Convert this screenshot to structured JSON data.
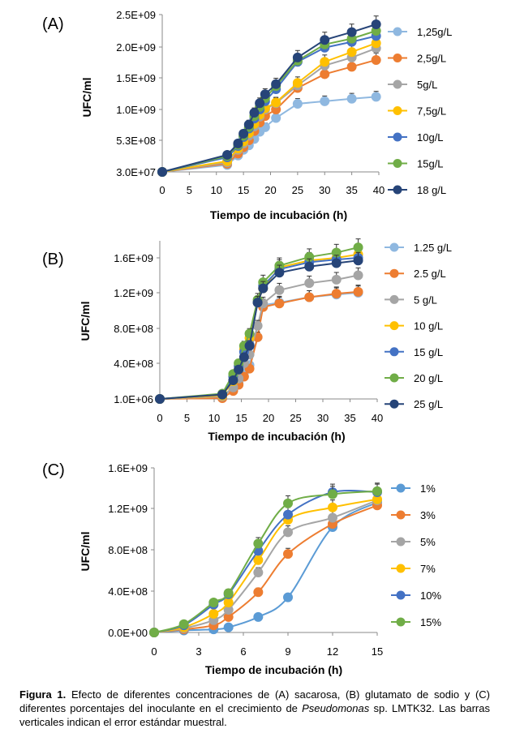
{
  "chart_data": [
    {
      "type": "line",
      "panel_label": "(A)",
      "xlabel": "Tiempo de incubación (h)",
      "ylabel": "UFC/ml",
      "xticks": [
        "0",
        "5",
        "10",
        "15",
        "20",
        "25",
        "30",
        "35",
        "40"
      ],
      "yticks": [
        "3.0E+07",
        "5.3E+08",
        "1.0E+09",
        "1.5E+09",
        "2.0E+09",
        "2.5E+09"
      ],
      "xlim": [
        0,
        40
      ],
      "ylim": [
        30000000,
        2500000000
      ],
      "x": [
        0,
        12,
        14,
        15,
        16,
        17,
        18,
        19,
        21,
        25,
        30,
        35,
        39.5
      ],
      "series": [
        {
          "name": "1,25g/L",
          "color": "#8fb8e0",
          "values": [
            30000000,
            140000000,
            290000000,
            380000000,
            450000000,
            550000000,
            660000000,
            730000000,
            870000000,
            1090000000,
            1130000000,
            1170000000,
            1200000000
          ]
        },
        {
          "name": "2,5g/L",
          "color": "#ed7d31",
          "values": [
            30000000,
            160000000,
            320000000,
            420000000,
            530000000,
            670000000,
            800000000,
            900000000,
            1000000000,
            1340000000,
            1560000000,
            1680000000,
            1790000000
          ]
        },
        {
          "name": "5g/L",
          "color": "#a5a5a5",
          "values": [
            30000000,
            180000000,
            380000000,
            480000000,
            600000000,
            740000000,
            890000000,
            1000000000,
            1100000000,
            1380000000,
            1700000000,
            1830000000,
            1980000000
          ]
        },
        {
          "name": "7,5g/L",
          "color": "#ffc000",
          "values": [
            30000000,
            200000000,
            400000000,
            510000000,
            640000000,
            780000000,
            920000000,
            1020000000,
            1110000000,
            1420000000,
            1760000000,
            1920000000,
            2060000000
          ]
        },
        {
          "name": "10g/L",
          "color": "#4472c4",
          "values": [
            30000000,
            260000000,
            440000000,
            580000000,
            710000000,
            860000000,
            1000000000,
            1130000000,
            1320000000,
            1760000000,
            1990000000,
            2080000000,
            2170000000
          ]
        },
        {
          "name": "15g/L",
          "color": "#70ad47",
          "values": [
            30000000,
            280000000,
            460000000,
            600000000,
            730000000,
            900000000,
            1040000000,
            1180000000,
            1370000000,
            1780000000,
            2040000000,
            2130000000,
            2250000000
          ]
        },
        {
          "name": "18 g/L",
          "color": "#264478",
          "values": [
            30000000,
            300000000,
            480000000,
            630000000,
            770000000,
            950000000,
            1100000000,
            1240000000,
            1400000000,
            1830000000,
            2110000000,
            2230000000,
            2350000000
          ]
        }
      ],
      "error_bars": true
    },
    {
      "type": "line",
      "panel_label": "(B)",
      "xlabel": "Tiempo de incubación (h)",
      "ylabel": "UFC/ml",
      "xticks": [
        "0",
        "5",
        "10",
        "15",
        "20",
        "25",
        "30",
        "35",
        "40"
      ],
      "yticks": [
        "1.0E+06",
        "4.0E+08",
        "8.0E+08",
        "1.2E+09",
        "1.6E+09"
      ],
      "xlim": [
        0,
        40
      ],
      "ylim": [
        1000000,
        1800000000
      ],
      "x": [
        0,
        11.5,
        13.5,
        14.5,
        15.5,
        16.5,
        18,
        19,
        22,
        27.5,
        32.5,
        36.5
      ],
      "series": [
        {
          "name": "1.25 g/L",
          "color": "#8fb8e0",
          "values": [
            0,
            20000000,
            100000000,
            180000000,
            300000000,
            380000000,
            700000000,
            1060000000,
            1090000000,
            1150000000,
            1180000000,
            1200000000
          ]
        },
        {
          "name": "2.5 g/L",
          "color": "#ed7d31",
          "values": [
            0,
            10000000,
            90000000,
            160000000,
            250000000,
            340000000,
            700000000,
            1040000000,
            1080000000,
            1150000000,
            1190000000,
            1210000000
          ]
        },
        {
          "name": "5 g/L",
          "color": "#a5a5a5",
          "values": [
            0,
            30000000,
            130000000,
            230000000,
            400000000,
            500000000,
            830000000,
            1080000000,
            1230000000,
            1310000000,
            1350000000,
            1400000000
          ]
        },
        {
          "name": "10 g/L",
          "color": "#ffc000",
          "values": [
            0,
            40000000,
            200000000,
            330000000,
            560000000,
            690000000,
            1090000000,
            1250000000,
            1490000000,
            1570000000,
            1600000000,
            1640000000
          ]
        },
        {
          "name": "15 g/L",
          "color": "#4472c4",
          "values": [
            0,
            50000000,
            250000000,
            370000000,
            530000000,
            610000000,
            1090000000,
            1280000000,
            1470000000,
            1550000000,
            1580000000,
            1600000000
          ]
        },
        {
          "name": "20 g/L",
          "color": "#70ad47",
          "values": [
            0,
            60000000,
            280000000,
            400000000,
            600000000,
            740000000,
            1120000000,
            1320000000,
            1510000000,
            1610000000,
            1660000000,
            1720000000
          ]
        },
        {
          "name": "25 g/L",
          "color": "#264478",
          "values": [
            0,
            50000000,
            210000000,
            330000000,
            470000000,
            600000000,
            1090000000,
            1250000000,
            1430000000,
            1500000000,
            1540000000,
            1570000000
          ]
        }
      ],
      "error_bars": true
    },
    {
      "type": "line",
      "panel_label": "(C)",
      "xlabel": "Tiempo de incubación (h)",
      "ylabel": "UFC/ml",
      "xticks": [
        "0",
        "3",
        "6",
        "9",
        "12",
        "15"
      ],
      "yticks": [
        "0.0E+00",
        "4.0E+08",
        "8.0E+08",
        "1.2E+09",
        "1.6E+09"
      ],
      "xlim": [
        0,
        15
      ],
      "ylim": [
        0,
        1600000000
      ],
      "x": [
        0,
        2,
        4,
        5,
        7,
        9,
        12,
        15
      ],
      "series": [
        {
          "name": "1%",
          "color": "#5b9bd5",
          "values": [
            0,
            20000000,
            30000000,
            50000000,
            150000000,
            340000000,
            1020000000,
            1260000000
          ]
        },
        {
          "name": "3%",
          "color": "#ed7d31",
          "values": [
            0,
            30000000,
            70000000,
            150000000,
            390000000,
            760000000,
            1050000000,
            1230000000
          ]
        },
        {
          "name": "5%",
          "color": "#a5a5a5",
          "values": [
            0,
            40000000,
            120000000,
            220000000,
            580000000,
            970000000,
            1110000000,
            1280000000
          ]
        },
        {
          "name": "7%",
          "color": "#ffc000",
          "values": [
            0,
            50000000,
            180000000,
            290000000,
            700000000,
            1090000000,
            1210000000,
            1290000000
          ]
        },
        {
          "name": "10%",
          "color": "#4472c4",
          "values": [
            0,
            70000000,
            270000000,
            370000000,
            790000000,
            1140000000,
            1360000000,
            1360000000
          ]
        },
        {
          "name": "15%",
          "color": "#70ad47",
          "values": [
            0,
            80000000,
            290000000,
            380000000,
            860000000,
            1250000000,
            1340000000,
            1370000000
          ]
        }
      ],
      "error_bars": true
    }
  ],
  "caption": {
    "bold": "Figura 1.",
    "text_1": " Efecto de diferentes concentraciones de (A) sacarosa, (B) glutamato de sodio y (C) diferentes porcentajes del inoculante en el crecimiento de ",
    "italic": "Pseudomonas",
    "text_2": " sp. LMTK32. Las barras verticales indican el error estándar muestral."
  }
}
